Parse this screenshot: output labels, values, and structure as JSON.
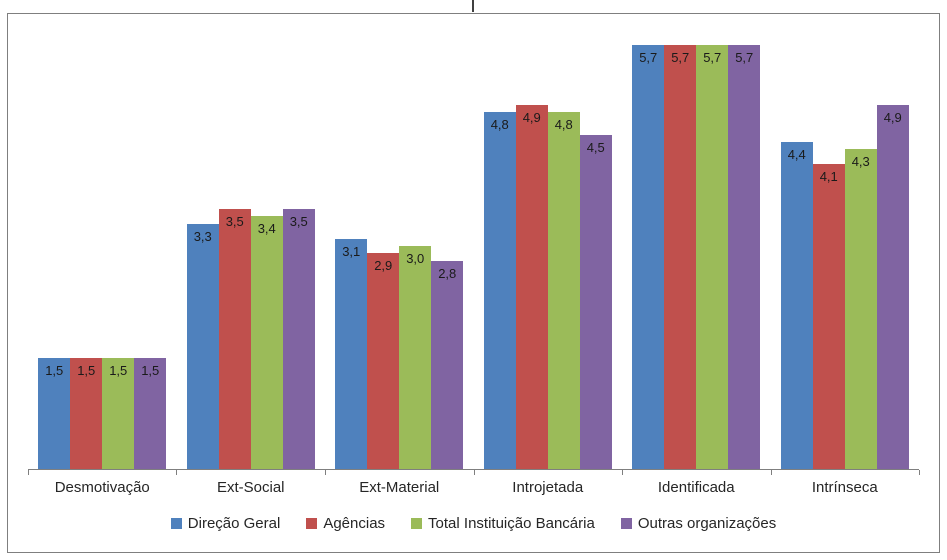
{
  "chart_data": {
    "type": "bar",
    "categories": [
      "Desmotivação",
      "Ext-Social",
      "Ext-Material",
      "Introjetada",
      "Identificada",
      "Intrínseca"
    ],
    "series": [
      {
        "name": "Direção Geral",
        "color": "#4F81BD",
        "values": [
          1.5,
          3.3,
          3.1,
          4.8,
          5.7,
          4.4
        ]
      },
      {
        "name": "Agências",
        "color": "#C0504D",
        "values": [
          1.5,
          3.5,
          2.9,
          4.9,
          5.7,
          4.1
        ]
      },
      {
        "name": "Total Instituição Bancária",
        "color": "#9BBB59",
        "values": [
          1.5,
          3.4,
          3.0,
          4.8,
          5.7,
          4.3
        ]
      },
      {
        "name": "Outras organizações",
        "color": "#8064A2",
        "values": [
          1.5,
          3.5,
          2.8,
          4.5,
          5.7,
          4.9
        ]
      }
    ],
    "ylim": [
      0,
      6
    ],
    "decimal_separator": ",",
    "grid": false,
    "legend_position": "bottom",
    "title": "",
    "xlabel": "",
    "ylabel": ""
  }
}
